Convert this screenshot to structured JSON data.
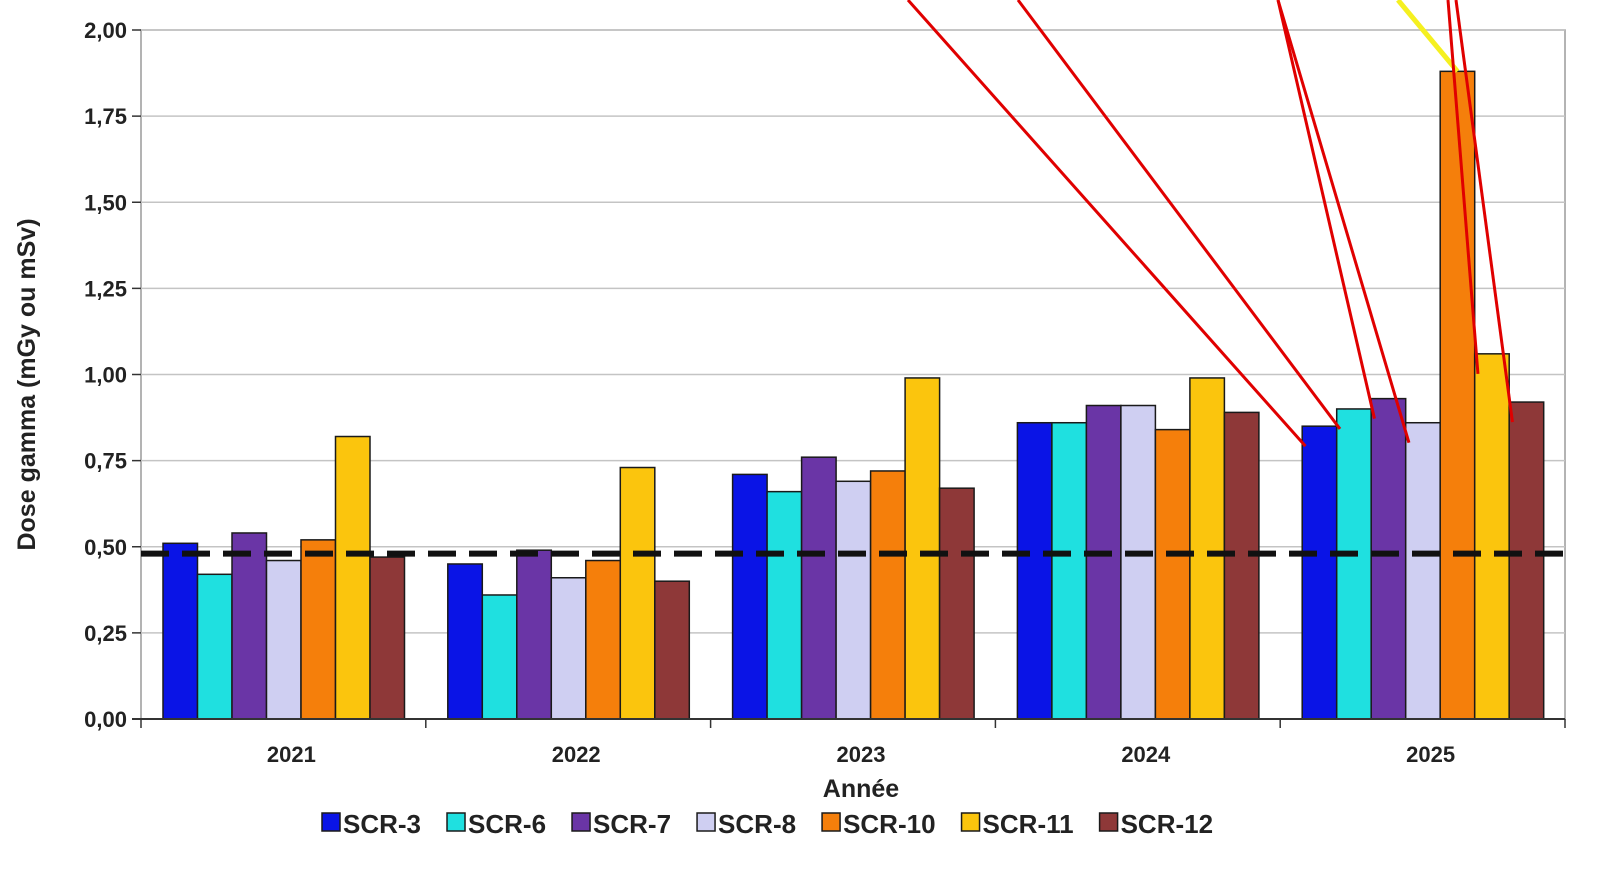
{
  "chart_data": {
    "type": "bar",
    "categories": [
      "2021",
      "2022",
      "2023",
      "2024",
      "2025"
    ],
    "series": [
      {
        "name": "SCR-3",
        "color": "#0a14e6",
        "values": [
          0.51,
          0.45,
          0.71,
          0.86,
          0.85
        ]
      },
      {
        "name": "SCR-6",
        "color": "#1fe0e0",
        "values": [
          0.42,
          0.36,
          0.66,
          0.86,
          0.9
        ]
      },
      {
        "name": "SCR-7",
        "color": "#6a35a6",
        "values": [
          0.54,
          0.49,
          0.76,
          0.91,
          0.93
        ]
      },
      {
        "name": "SCR-8",
        "color": "#cfcff2",
        "values": [
          0.46,
          0.41,
          0.69,
          0.91,
          0.86
        ]
      },
      {
        "name": "SCR-10",
        "color": "#f57f0b",
        "values": [
          0.52,
          0.46,
          0.72,
          0.84,
          1.88
        ]
      },
      {
        "name": "SCR-11",
        "color": "#fbc50d",
        "values": [
          0.82,
          0.73,
          0.99,
          0.99,
          1.06
        ]
      },
      {
        "name": "SCR-12",
        "color": "#8e3838",
        "values": [
          0.47,
          0.4,
          0.67,
          0.89,
          0.92
        ]
      }
    ],
    "reference_line": {
      "value": 0.48,
      "style": "dashed",
      "color": "#111111"
    },
    "yticks": [
      "0,00",
      "0,25",
      "0,50",
      "0,75",
      "1,00",
      "1,25",
      "1,50",
      "1,75",
      "2,00"
    ],
    "ylim": [
      0,
      2.0
    ],
    "xlabel": "Année",
    "ylabel": "Dose gamma (mGy ou mSv)",
    "grid": true,
    "legend_position": "bottom",
    "annotations": {
      "pointer_lines_color": "#e00000",
      "highlight_line_color": "#f5f020",
      "pointer_targets": [
        {
          "series": "SCR-3",
          "category": "2025"
        },
        {
          "series": "SCR-6",
          "category": "2025"
        },
        {
          "series": "SCR-7",
          "category": "2025"
        },
        {
          "series": "SCR-8",
          "category": "2025"
        },
        {
          "series": "SCR-10",
          "category": "2025"
        },
        {
          "series": "SCR-11",
          "category": "2025"
        },
        {
          "series": "SCR-12",
          "category": "2025"
        }
      ]
    }
  }
}
